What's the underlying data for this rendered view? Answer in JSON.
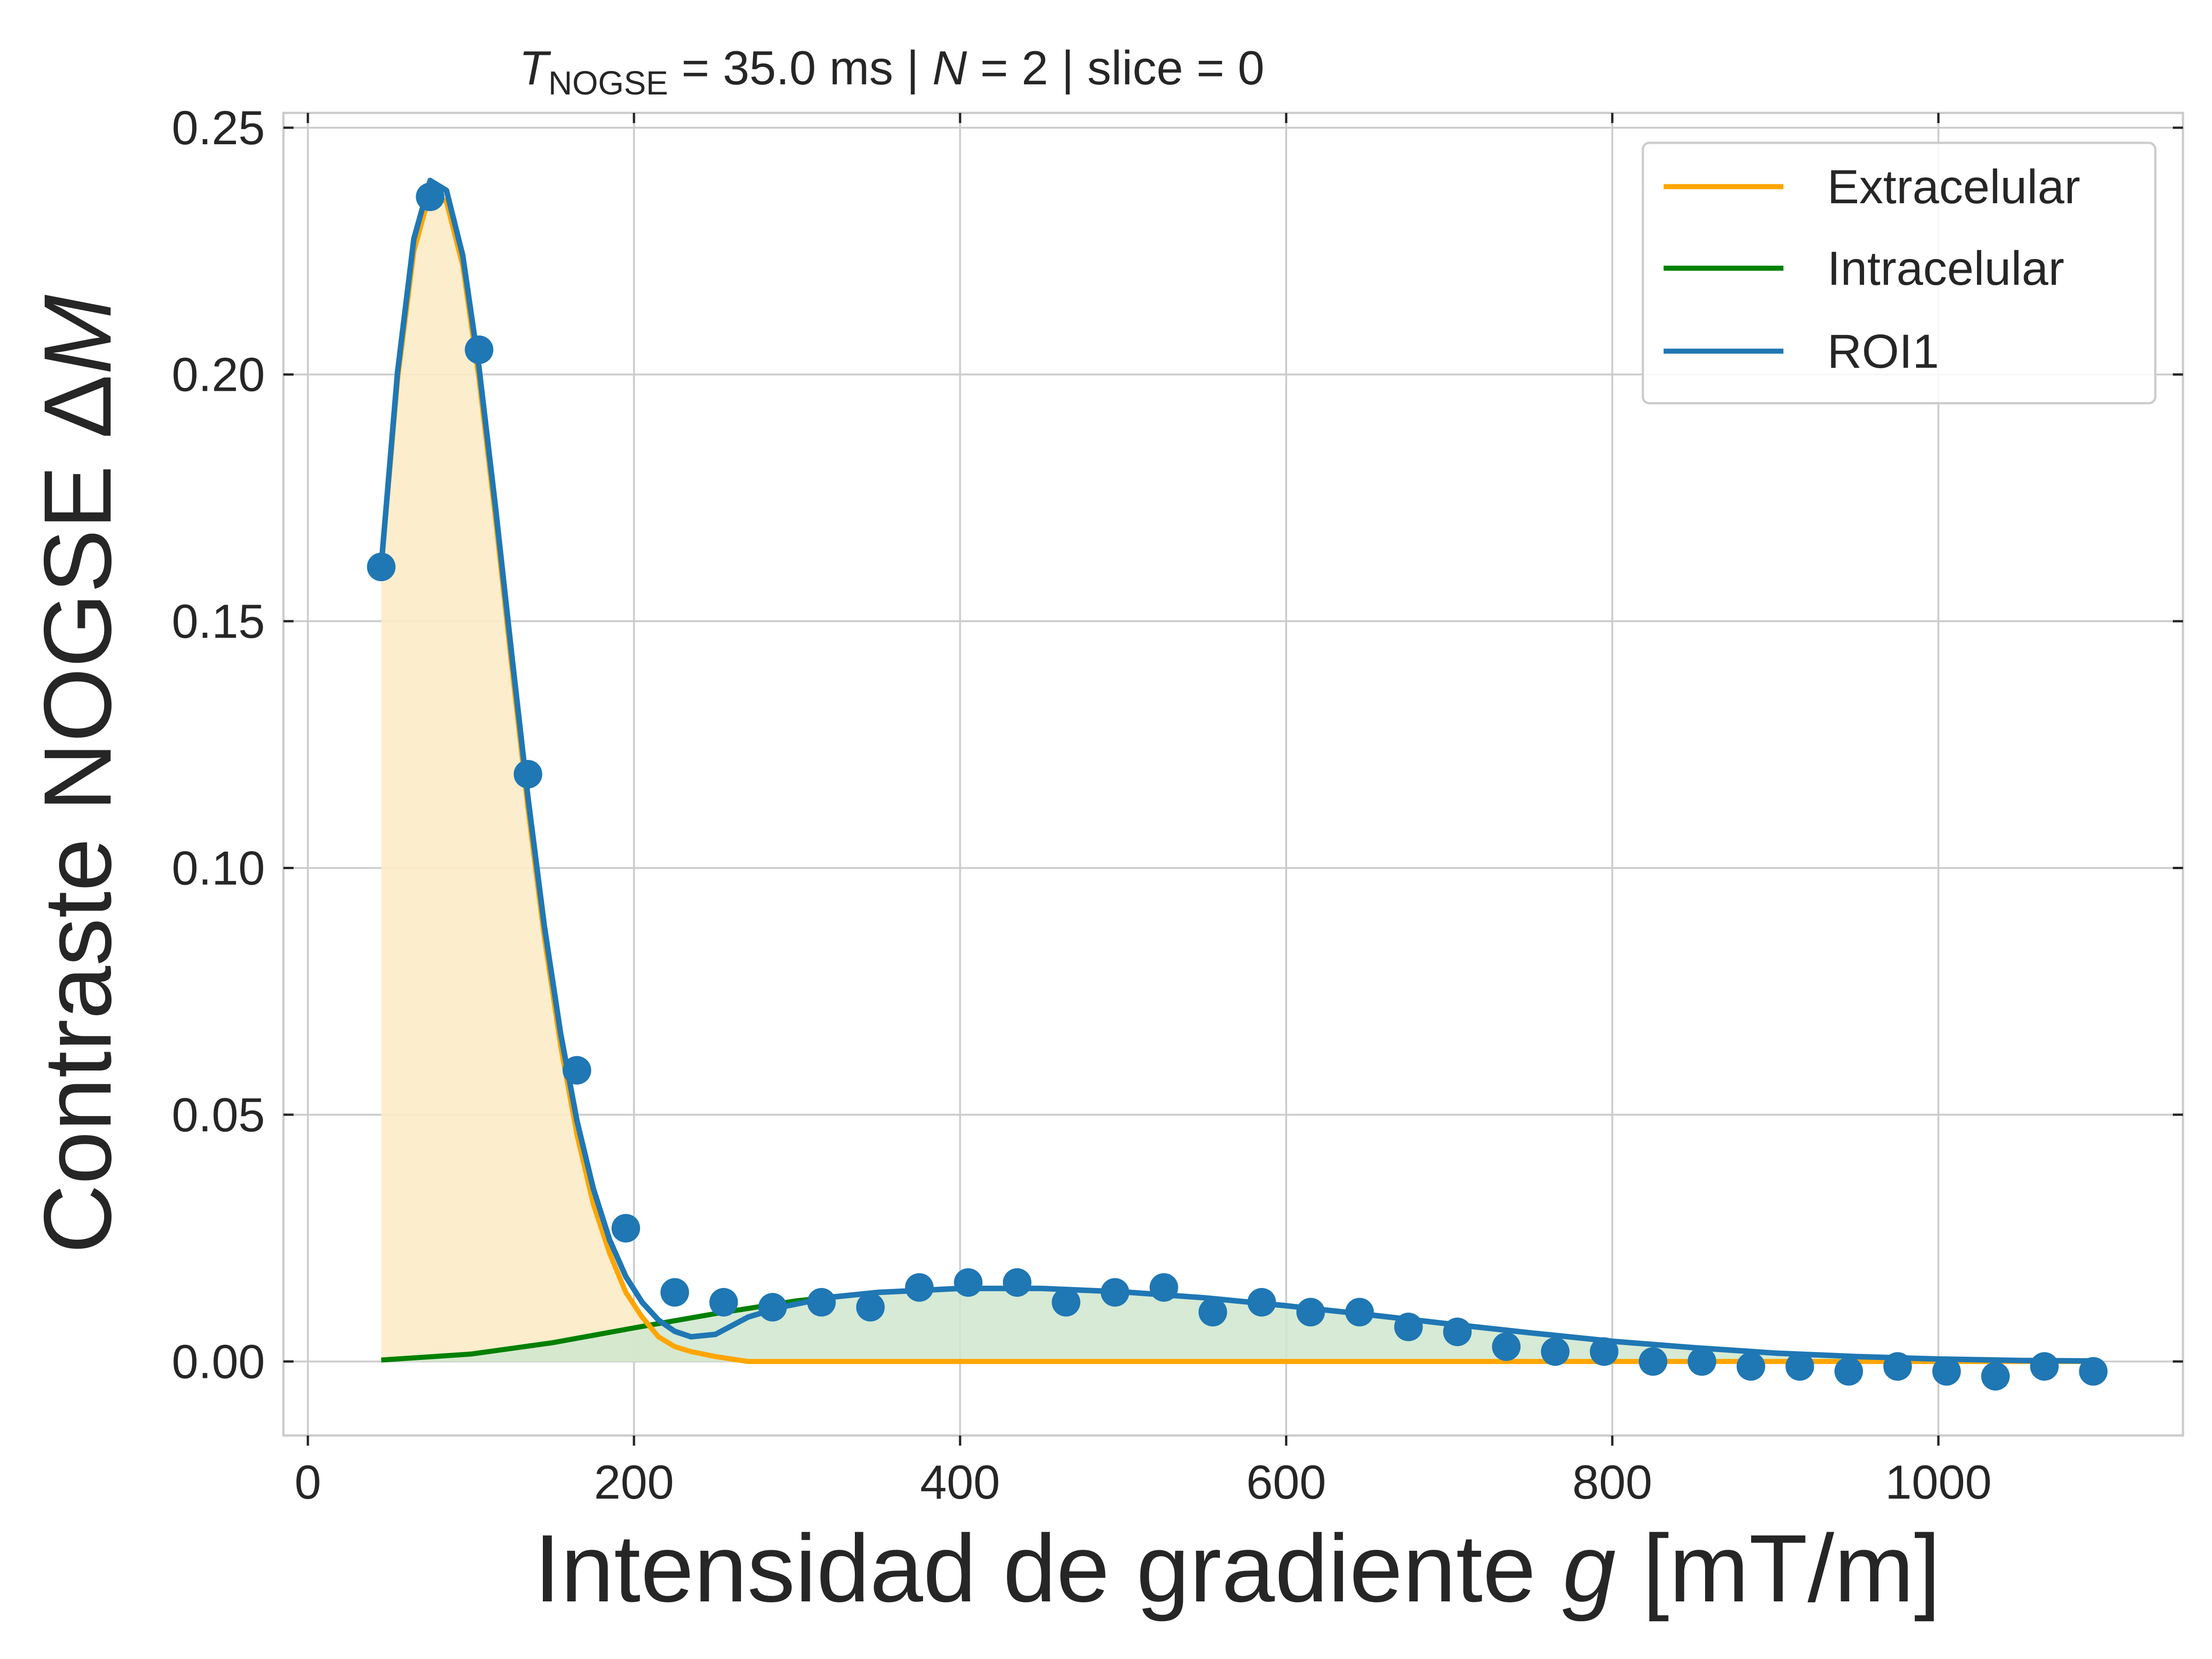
{
  "chart_data": {
    "type": "line",
    "title_main": "T",
    "title_sub": "NOGSE",
    "title_rest": " = 35.0 ms | ",
    "title_n": "N",
    "title_tail": " = 2 | slice = 0",
    "xlabel_main": "Intensidad de gradiente ",
    "xlabel_var": "g",
    "xlabel_unit": " [mT/m]",
    "ylabel_main": "Contraste NOGSE Δ",
    "ylabel_var": "M",
    "xlim": [
      -15,
      1150
    ],
    "ylim": [
      -0.015,
      0.253
    ],
    "xticks": [
      0,
      200,
      400,
      600,
      800,
      1000
    ],
    "xtick_labels": [
      "0",
      "200",
      "400",
      "600",
      "800",
      "1000"
    ],
    "yticks": [
      0.0,
      0.05,
      0.1,
      0.15,
      0.2,
      0.25
    ],
    "ytick_labels": [
      "0.00",
      "0.05",
      "0.10",
      "0.15",
      "0.20",
      "0.25"
    ],
    "grid": true,
    "legend_position": "top-right",
    "colors": {
      "extracelular": "#FFA500",
      "intracelular": "#008000",
      "roi": "#1F77B4",
      "extra_fill": "#FCEBC6",
      "intra_fill": "#CFE6CE",
      "grid": "#CCCCCC",
      "frame": "#CCCCCC"
    },
    "series": [
      {
        "name": "Extracelular",
        "kind": "line",
        "x": [
          45,
          55,
          65,
          75,
          85,
          95,
          105,
          115,
          125,
          135,
          145,
          155,
          165,
          175,
          185,
          195,
          205,
          215,
          225,
          235,
          250,
          270,
          290,
          320,
          400,
          600,
          800,
          1000,
          1095
        ],
        "y": [
          0.161,
          0.199,
          0.225,
          0.237,
          0.235,
          0.222,
          0.199,
          0.171,
          0.141,
          0.112,
          0.086,
          0.064,
          0.046,
          0.032,
          0.022,
          0.014,
          0.009,
          0.005,
          0.003,
          0.002,
          0.001,
          0.0,
          0.0,
          0.0,
          0.0,
          0.0,
          0.0,
          0.0,
          0.0
        ]
      },
      {
        "name": "Intracelular",
        "kind": "line",
        "x": [
          45,
          100,
          150,
          200,
          250,
          300,
          350,
          400,
          450,
          500,
          550,
          600,
          650,
          700,
          750,
          800,
          850,
          900,
          950,
          1000,
          1050,
          1095
        ],
        "y": [
          0.0003,
          0.0015,
          0.0038,
          0.0068,
          0.0097,
          0.0123,
          0.014,
          0.0148,
          0.0148,
          0.0141,
          0.0129,
          0.0113,
          0.0095,
          0.0076,
          0.0058,
          0.0041,
          0.0028,
          0.0017,
          0.001,
          0.0005,
          0.0002,
          0.0001
        ]
      },
      {
        "name": "ROI1",
        "kind": "line",
        "x": [
          45,
          55,
          65,
          75,
          85,
          95,
          105,
          115,
          125,
          135,
          145,
          155,
          165,
          175,
          185,
          195,
          205,
          215,
          225,
          235,
          250,
          270,
          290,
          320,
          350,
          400,
          450,
          500,
          550,
          600,
          650,
          700,
          750,
          800,
          850,
          900,
          950,
          1000,
          1050,
          1095
        ],
        "y": [
          0.1613,
          0.2005,
          0.2275,
          0.2393,
          0.2373,
          0.2241,
          0.2013,
          0.1733,
          0.1434,
          0.1143,
          0.0883,
          0.0665,
          0.0488,
          0.0351,
          0.0247,
          0.0172,
          0.012,
          0.0084,
          0.0061,
          0.005,
          0.0055,
          0.009,
          0.011,
          0.013,
          0.014,
          0.0148,
          0.0148,
          0.0141,
          0.0129,
          0.0113,
          0.0095,
          0.0076,
          0.0058,
          0.0041,
          0.0028,
          0.0017,
          0.001,
          0.0005,
          0.0002,
          0.0001
        ]
      },
      {
        "name": "ROI1",
        "kind": "points",
        "x": [
          45,
          75,
          105,
          135,
          165,
          195,
          225,
          255,
          285,
          315,
          345,
          375,
          405,
          435,
          465,
          495,
          525,
          555,
          585,
          615,
          645,
          675,
          705,
          735,
          765,
          795,
          825,
          855,
          885,
          915,
          945,
          975,
          1005,
          1035,
          1065,
          1095
        ],
        "y": [
          0.161,
          0.236,
          0.205,
          0.119,
          0.059,
          0.027,
          0.014,
          0.012,
          0.011,
          0.012,
          0.011,
          0.015,
          0.016,
          0.016,
          0.012,
          0.014,
          0.015,
          0.01,
          0.012,
          0.01,
          0.01,
          0.007,
          0.006,
          0.003,
          0.002,
          0.002,
          0.0,
          0.0,
          -0.001,
          -0.001,
          -0.002,
          -0.001,
          -0.002,
          -0.003,
          -0.001,
          -0.002
        ]
      }
    ],
    "legend": [
      "Extracelular",
      "Intracelular",
      "ROI1"
    ]
  }
}
